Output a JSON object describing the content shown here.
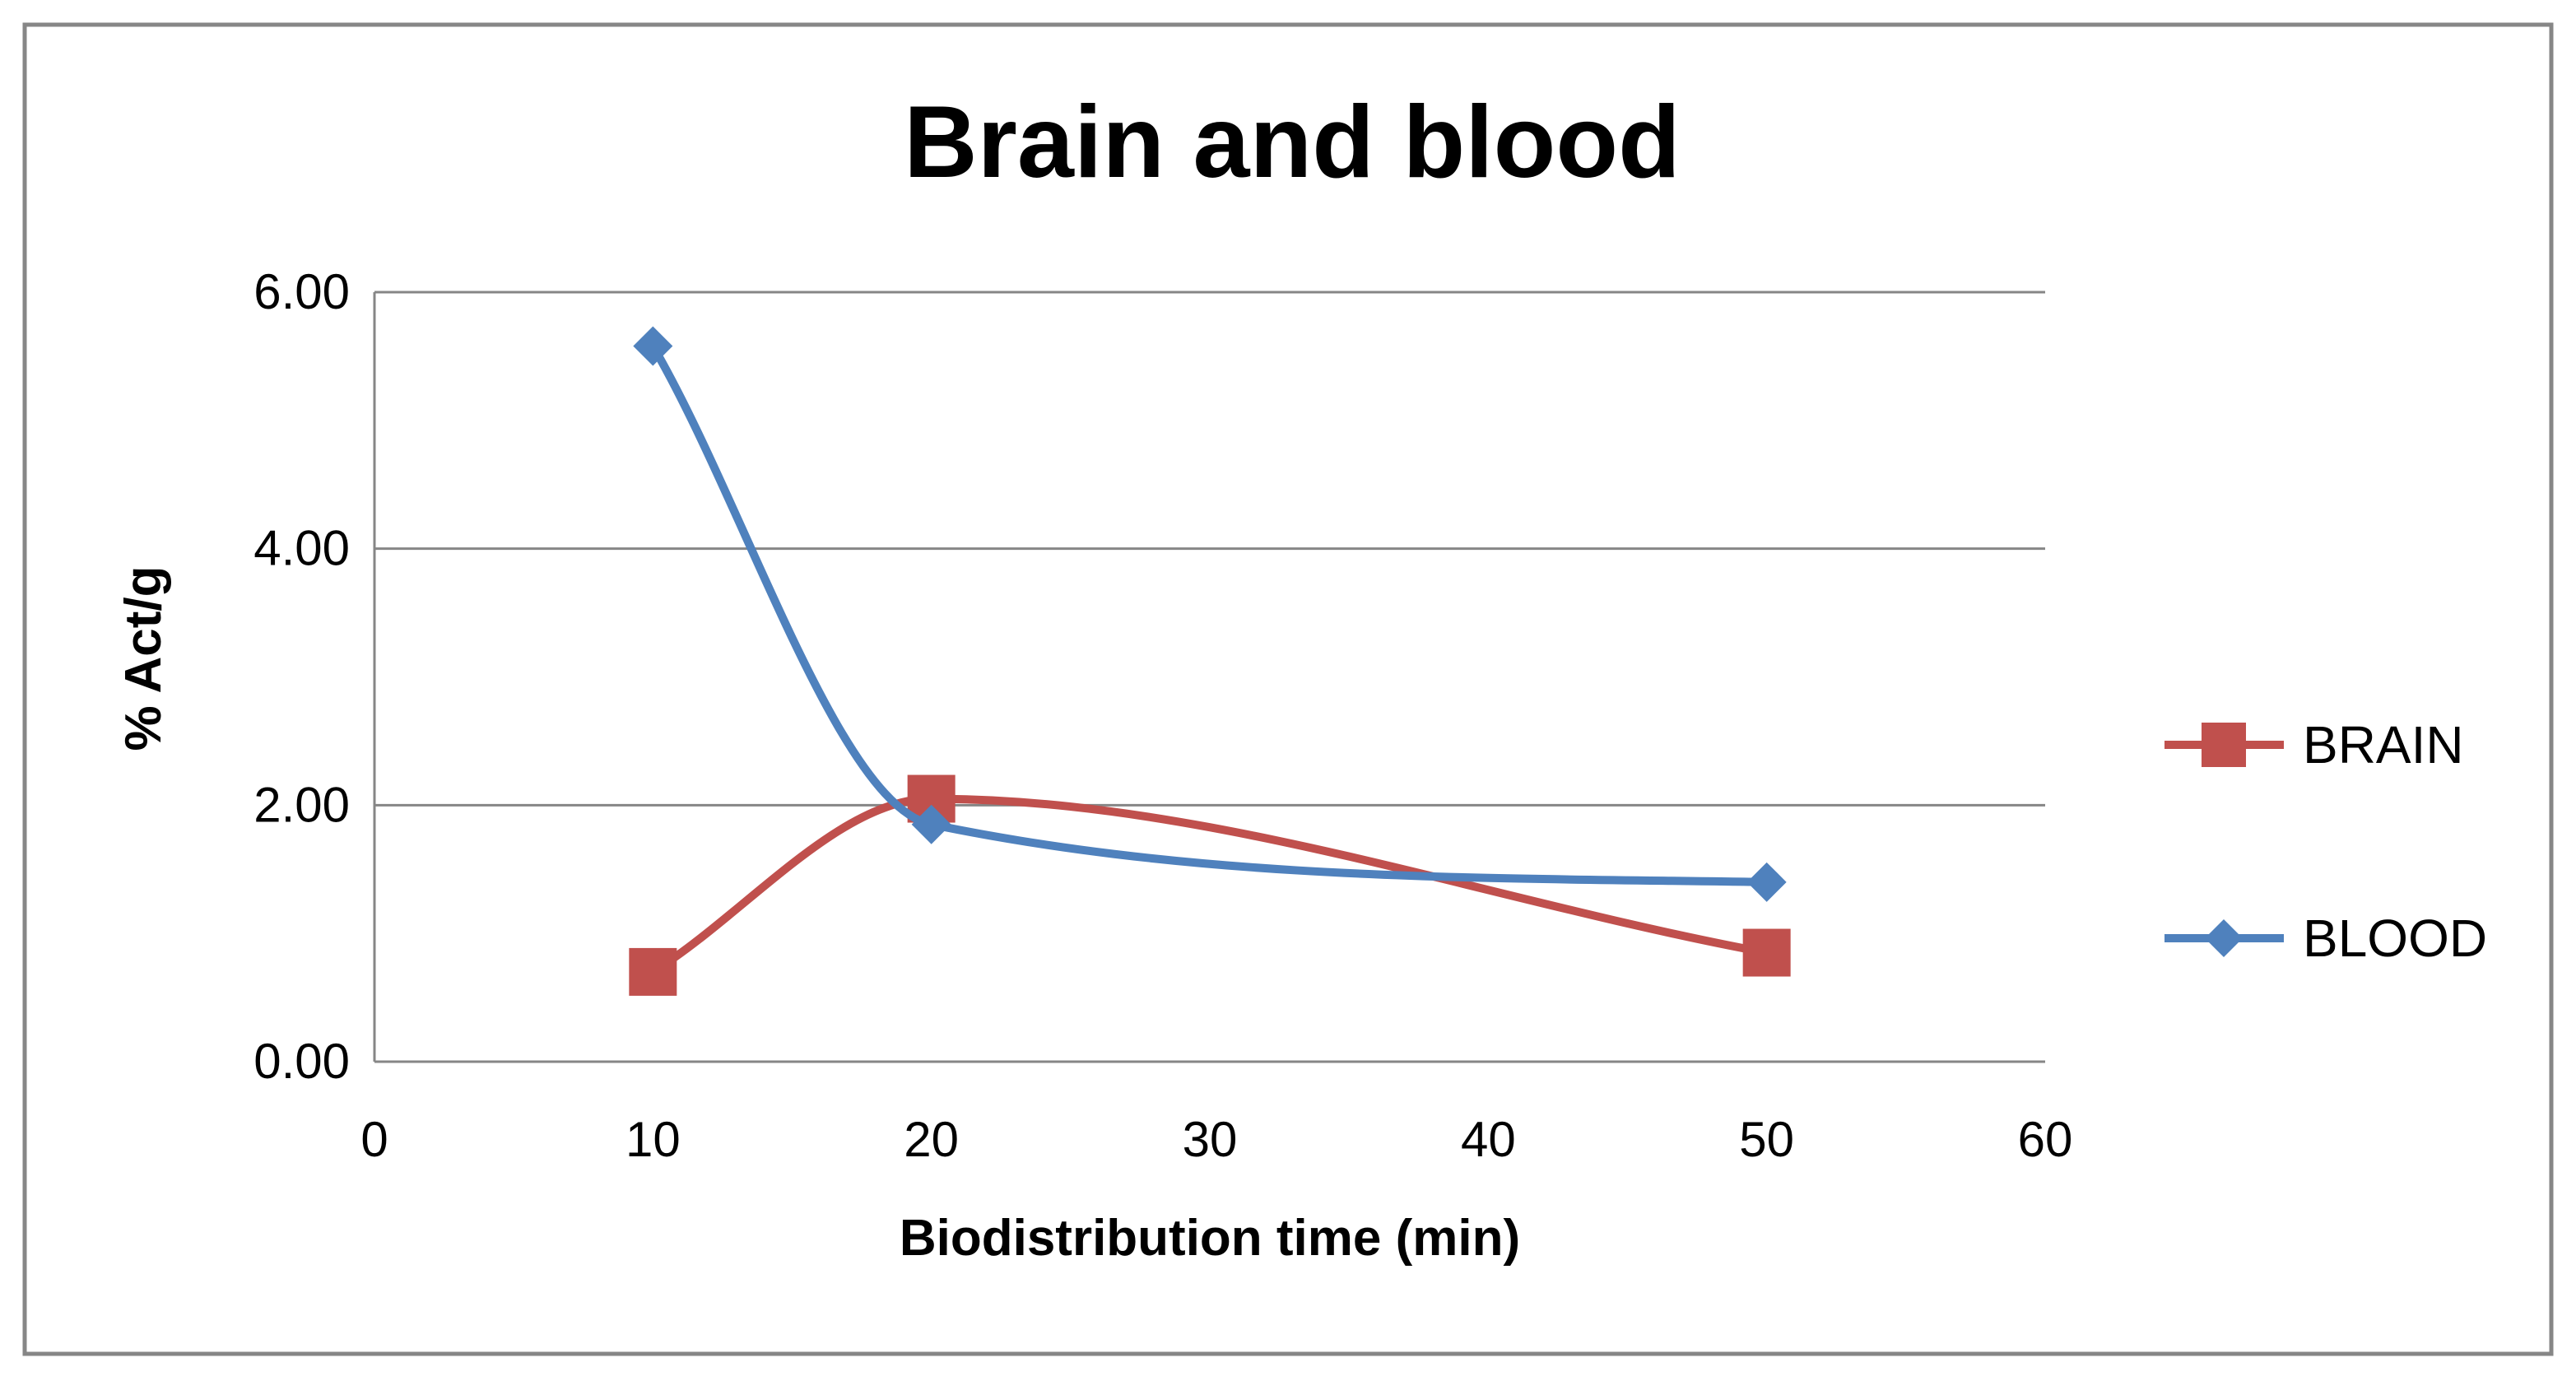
{
  "chart_data": {
    "type": "line",
    "title": "Brain and blood",
    "xlabel": "Biodistribution  time (min)",
    "ylabel": "% Act/g",
    "xlim": [
      0,
      60
    ],
    "ylim": [
      0,
      6
    ],
    "x_ticks": [
      0,
      10,
      20,
      30,
      40,
      50,
      60
    ],
    "x_tick_labels": [
      "0",
      "10",
      "20",
      "30",
      "40",
      "50",
      "60"
    ],
    "y_ticks": [
      0,
      2,
      4,
      6
    ],
    "y_tick_labels": [
      "0.00",
      "2.00",
      "4.00",
      "6.00"
    ],
    "grid": "horizontal",
    "smooth": true,
    "legend_position": "right",
    "series": [
      {
        "name": "BRAIN",
        "color": "#C0504D",
        "marker": "square",
        "x": [
          10,
          20,
          50
        ],
        "y": [
          0.7,
          2.05,
          0.85
        ]
      },
      {
        "name": "BLOOD",
        "color": "#4F81BD",
        "marker": "diamond",
        "x": [
          10,
          20,
          50
        ],
        "y": [
          5.58,
          1.85,
          1.4
        ]
      }
    ]
  }
}
